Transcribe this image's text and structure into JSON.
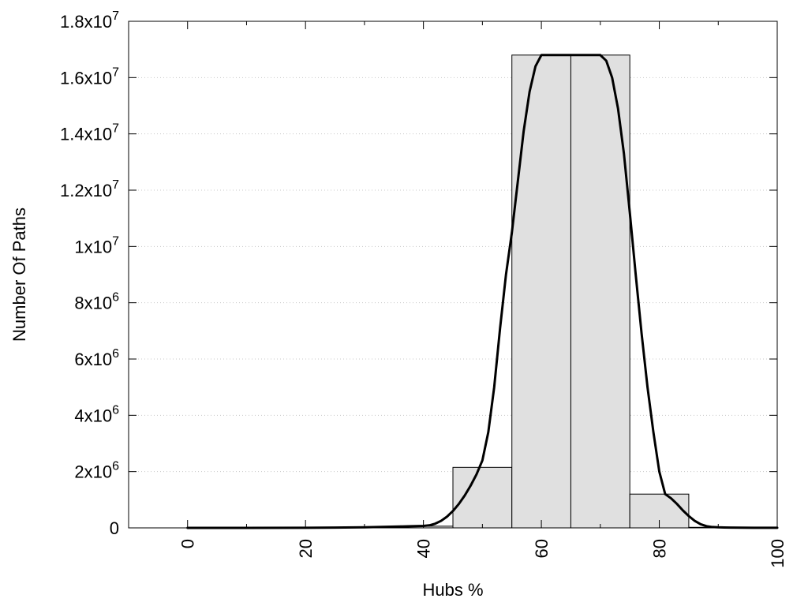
{
  "chart_data": {
    "type": "bar",
    "title": "",
    "xlabel": "Hubs %",
    "ylabel": "Number Of Paths",
    "xlim": [
      -10,
      100
    ],
    "ylim": [
      0,
      18000000
    ],
    "x_ticks": [
      {
        "value": 0,
        "label": "0"
      },
      {
        "value": 20,
        "label": "20"
      },
      {
        "value": 40,
        "label": "40"
      },
      {
        "value": 60,
        "label": "60"
      },
      {
        "value": 80,
        "label": "80"
      },
      {
        "value": 100,
        "label": "100"
      }
    ],
    "y_ticks": [
      {
        "value": 0,
        "mantissa": "0",
        "exponent": ""
      },
      {
        "value": 2000000,
        "mantissa": "2x10",
        "exponent": "6"
      },
      {
        "value": 4000000,
        "mantissa": "4x10",
        "exponent": "6"
      },
      {
        "value": 6000000,
        "mantissa": "6x10",
        "exponent": "6"
      },
      {
        "value": 8000000,
        "mantissa": "8x10",
        "exponent": "6"
      },
      {
        "value": 10000000,
        "mantissa": "1x10",
        "exponent": "7"
      },
      {
        "value": 12000000,
        "mantissa": "1.2x10",
        "exponent": "7"
      },
      {
        "value": 14000000,
        "mantissa": "1.4x10",
        "exponent": "7"
      },
      {
        "value": 16000000,
        "mantissa": "1.6x10",
        "exponent": "7"
      },
      {
        "value": 18000000,
        "mantissa": "1.8x10",
        "exponent": "7"
      }
    ],
    "grid": "horizontal-dotted",
    "legend": "none",
    "bar_fill": "#e0e0e0",
    "bar_stroke": "#000000",
    "line_color": "#000000",
    "bars": [
      {
        "x0": 35,
        "x1": 45,
        "value": 60000
      },
      {
        "x0": 45,
        "x1": 55,
        "value": 2150000
      },
      {
        "x0": 55,
        "x1": 65,
        "value": 16800000
      },
      {
        "x0": 65,
        "x1": 75,
        "value": 16800000
      },
      {
        "x0": 75,
        "x1": 85,
        "value": 1200000
      },
      {
        "x0": 85,
        "x1": 95,
        "value": 20000
      }
    ],
    "curve": {
      "x": [
        0,
        10,
        20,
        25,
        30,
        33,
        36,
        38,
        40,
        41,
        42,
        43,
        44,
        45,
        46,
        47,
        48,
        49,
        50,
        51,
        52,
        53,
        54,
        55,
        56,
        57,
        58,
        59,
        60,
        61,
        62,
        63,
        64,
        65,
        66,
        67,
        68,
        69,
        70,
        71,
        72,
        73,
        74,
        75,
        76,
        77,
        78,
        79,
        80,
        81,
        82,
        83,
        84,
        85,
        86,
        87,
        88,
        89,
        90,
        91,
        92,
        94,
        96,
        98,
        100
      ],
      "y": [
        0,
        0,
        5000,
        10000,
        20000,
        35000,
        50000,
        60000,
        70000,
        90000,
        150000,
        250000,
        400000,
        600000,
        850000,
        1150000,
        1500000,
        1900000,
        2400000,
        3400000,
        5000000,
        7100000,
        9000000,
        10500000,
        12300000,
        14100000,
        15500000,
        16400000,
        16800000,
        16800000,
        16800000,
        16800000,
        16800000,
        16800000,
        16800000,
        16800000,
        16800000,
        16800000,
        16800000,
        16600000,
        16000000,
        14900000,
        13300000,
        11200000,
        9000000,
        6900000,
        5000000,
        3400000,
        2000000,
        1200000,
        1050000,
        850000,
        620000,
        420000,
        250000,
        130000,
        60000,
        30000,
        20000,
        15000,
        12000,
        8000,
        5000,
        3000,
        2000
      ]
    }
  }
}
